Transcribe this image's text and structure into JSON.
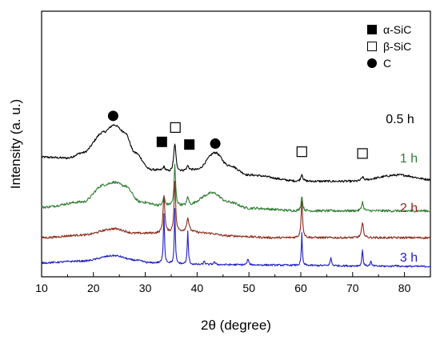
{
  "chart_data": {
    "type": "line",
    "xlabel": "2θ (degree)",
    "ylabel": "Intensity (a. u.)",
    "xlim": [
      10,
      85
    ],
    "xticks": [
      10,
      20,
      30,
      40,
      50,
      60,
      70,
      80
    ],
    "ylim": [
      0,
      1.25
    ],
    "grid": false,
    "legend": {
      "position": "top-right",
      "entries": [
        {
          "marker": "filled-square",
          "label": "α-SiC"
        },
        {
          "marker": "open-square",
          "label": "β-SiC"
        },
        {
          "marker": "filled-circle",
          "label": "C"
        }
      ]
    },
    "series": [
      {
        "name": "0.5 h",
        "color": "#000000",
        "offset": 0.95,
        "baseline": [
          [
            10,
            0.27
          ],
          [
            15,
            0.26
          ],
          [
            18,
            0.32
          ],
          [
            22,
            0.55
          ],
          [
            24,
            0.63
          ],
          [
            26,
            0.55
          ],
          [
            28,
            0.32
          ],
          [
            31,
            0.13
          ],
          [
            35,
            0.1
          ],
          [
            40,
            0.13
          ],
          [
            43.5,
            0.32
          ],
          [
            46,
            0.18
          ],
          [
            50,
            0.07
          ],
          [
            60,
            0.0
          ],
          [
            70,
            0.0
          ],
          [
            79,
            0.07
          ],
          [
            85,
            0.02
          ]
        ],
        "peaks": [
          [
            33.6,
            0.05,
            0.6
          ],
          [
            35.7,
            0.32,
            0.5
          ],
          [
            38.2,
            0.05,
            0.5
          ],
          [
            60.2,
            0.08,
            0.45
          ],
          [
            71.9,
            0.04,
            0.5
          ]
        ],
        "noise": 0.012
      },
      {
        "name": "1 h",
        "color": "#2e7d32",
        "offset": 0.62,
        "baseline": [
          [
            10,
            0.04
          ],
          [
            18,
            0.1
          ],
          [
            22,
            0.29
          ],
          [
            24,
            0.32
          ],
          [
            26,
            0.28
          ],
          [
            29,
            0.1
          ],
          [
            33,
            0.06
          ],
          [
            38,
            0.06
          ],
          [
            43,
            0.2
          ],
          [
            46,
            0.1
          ],
          [
            50,
            0.03
          ],
          [
            60,
            0.0
          ],
          [
            85,
            0.0
          ]
        ],
        "peaks": [
          [
            33.6,
            0.1,
            0.4
          ],
          [
            35.7,
            0.45,
            0.35
          ],
          [
            38.2,
            0.1,
            0.4
          ],
          [
            60.2,
            0.17,
            0.35
          ],
          [
            71.9,
            0.1,
            0.4
          ]
        ],
        "noise": 0.014
      },
      {
        "name": "2 h",
        "color": "#8b2a1a",
        "offset": 0.32,
        "baseline": [
          [
            10,
            0.0
          ],
          [
            18,
            0.03
          ],
          [
            24,
            0.1
          ],
          [
            28,
            0.05
          ],
          [
            33,
            0.05
          ],
          [
            38,
            0.07
          ],
          [
            42,
            0.05
          ],
          [
            46,
            0.02
          ],
          [
            55,
            0.0
          ],
          [
            85,
            0.0
          ]
        ],
        "peaks": [
          [
            33.6,
            0.42,
            0.4
          ],
          [
            35.7,
            0.57,
            0.35
          ],
          [
            38.2,
            0.15,
            0.5
          ],
          [
            60.2,
            0.4,
            0.35
          ],
          [
            71.9,
            0.16,
            0.45
          ]
        ],
        "noise": 0.012
      },
      {
        "name": "3 h",
        "color": "#1f1fc0",
        "offset": 0.0,
        "baseline": [
          [
            10,
            0.04
          ],
          [
            18,
            0.06
          ],
          [
            24,
            0.12
          ],
          [
            28,
            0.07
          ],
          [
            31,
            0.04
          ],
          [
            40,
            0.02
          ],
          [
            85,
            0.0
          ]
        ],
        "peaks": [
          [
            33.6,
            0.56,
            0.25
          ],
          [
            35.7,
            0.62,
            0.22
          ],
          [
            38.2,
            0.37,
            0.25
          ],
          [
            41.4,
            0.04,
            0.3
          ],
          [
            43.3,
            0.03,
            0.4
          ],
          [
            49.8,
            0.07,
            0.3
          ],
          [
            60.2,
            0.36,
            0.22
          ],
          [
            65.8,
            0.09,
            0.3
          ],
          [
            71.9,
            0.19,
            0.25
          ],
          [
            73.5,
            0.05,
            0.3
          ],
          [
            78.3,
            0.02,
            0.3
          ]
        ],
        "noise": 0.01
      }
    ],
    "annotations": [
      {
        "marker": "filled-circle",
        "x": 23.8,
        "y": 1.68
      },
      {
        "marker": "open-square",
        "x": 35.8,
        "y": 1.55
      },
      {
        "marker": "filled-square",
        "x": 33.2,
        "y": 1.39
      },
      {
        "marker": "filled-square",
        "x": 38.5,
        "y": 1.36
      },
      {
        "marker": "filled-circle",
        "x": 43.5,
        "y": 1.37
      },
      {
        "marker": "open-square",
        "x": 60.2,
        "y": 1.28
      },
      {
        "marker": "open-square",
        "x": 71.9,
        "y": 1.26
      }
    ]
  }
}
